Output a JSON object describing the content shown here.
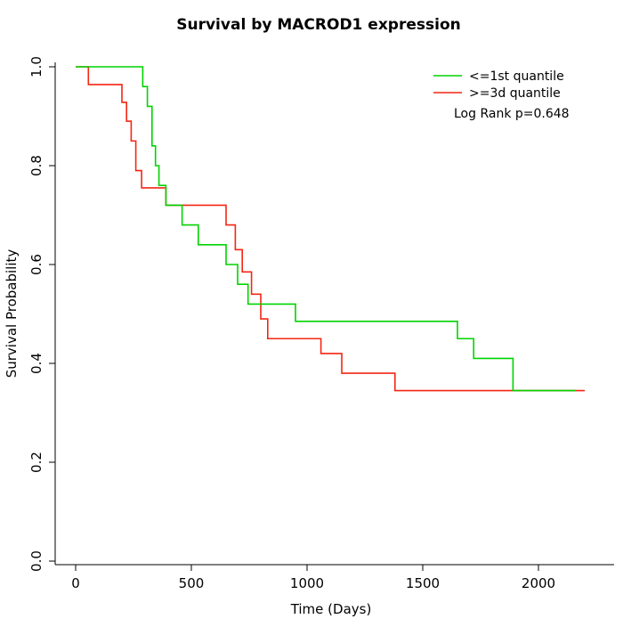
{
  "chart_data": {
    "type": "line",
    "subtype": "kaplan-meier-step",
    "title": "Survival by MACROD1 expression",
    "xlabel": "Time (Days)",
    "ylabel": "Survival Probability",
    "xlim": [
      0,
      2200
    ],
    "ylim": [
      0.0,
      1.0
    ],
    "grid": false,
    "xticks": [
      {
        "v": 0,
        "label": "0"
      },
      {
        "v": 500,
        "label": "500"
      },
      {
        "v": 1000,
        "label": "1000"
      },
      {
        "v": 1500,
        "label": "1500"
      },
      {
        "v": 2000,
        "label": "2000"
      }
    ],
    "yticks": [
      {
        "v": 0.0,
        "label": "0.0"
      },
      {
        "v": 0.2,
        "label": "0.2"
      },
      {
        "v": 0.4,
        "label": "0.4"
      },
      {
        "v": 0.6,
        "label": "0.6"
      },
      {
        "v": 0.8,
        "label": "0.8"
      },
      {
        "v": 1.0,
        "label": "1.0"
      }
    ],
    "legend": {
      "position": "top-right",
      "entries": [
        {
          "label": "<=1st quantile",
          "color": "#00d400"
        },
        {
          "label": ">=3d quantile",
          "color": "#f42613"
        }
      ]
    },
    "annotation": "Log Rank p=0.648",
    "series": [
      {
        "name": ">=3d quantile",
        "color": "#f42613",
        "x": [
          0,
          55,
          200,
          220,
          240,
          260,
          285,
          390,
          650,
          690,
          720,
          760,
          800,
          830,
          1060,
          1150,
          1380,
          2200
        ],
        "y": [
          1.0,
          0.964,
          0.928,
          0.89,
          0.85,
          0.79,
          0.755,
          0.72,
          0.68,
          0.63,
          0.585,
          0.54,
          0.49,
          0.45,
          0.42,
          0.38,
          0.345,
          0.345
        ]
      },
      {
        "name": "<=1st quantile",
        "color": "#00d400",
        "x": [
          0,
          290,
          310,
          330,
          345,
          360,
          390,
          460,
          530,
          650,
          700,
          745,
          950,
          1650,
          1720,
          1890,
          2160
        ],
        "y": [
          1.0,
          0.96,
          0.92,
          0.84,
          0.8,
          0.76,
          0.72,
          0.68,
          0.64,
          0.6,
          0.56,
          0.52,
          0.485,
          0.45,
          0.41,
          0.345,
          0.345
        ]
      }
    ]
  }
}
